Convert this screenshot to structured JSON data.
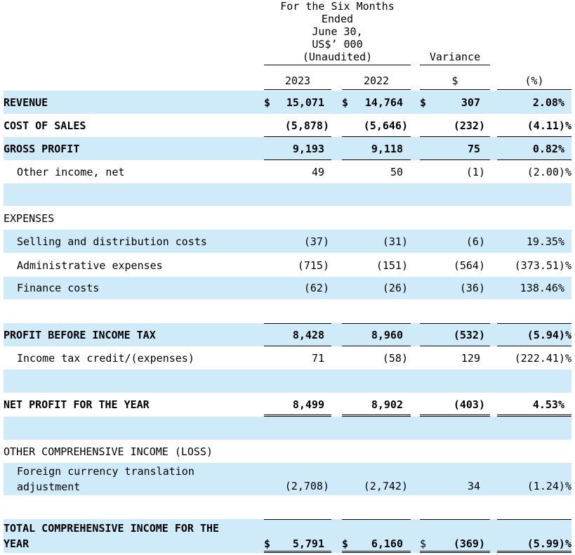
{
  "header": {
    "period": [
      "For the Six  Months",
      "Ended",
      "June  30,",
      "US$’ 000",
      "(Unaudited)"
    ],
    "variance": "Variance",
    "col_2023": "2023",
    "col_2022": "2022",
    "col_dollar": "$",
    "col_pct": "(%)"
  },
  "rows": {
    "revenue": {
      "label": "REVENUE",
      "cur23": "$",
      "v2023": "15,071",
      "cur22": "$",
      "v2022": "14,764",
      "curvar": "$",
      "var": "307",
      "pct": "2.08%"
    },
    "cost_of_sales": {
      "label": "COST OF SALES",
      "v2023": "(5,878)",
      "v2022": "(5,646)",
      "var": "(232)",
      "pct": "(4.11)%"
    },
    "gross_profit": {
      "label": "GROSS PROFIT",
      "v2023": "9,193",
      "v2022": "9,118",
      "var": "75",
      "pct": "0.82%"
    },
    "other_income": {
      "label": "Other income, net",
      "v2023": "49",
      "v2022": "50",
      "var": "(1)",
      "pct": "(2.00)%"
    },
    "expenses": {
      "label": "EXPENSES"
    },
    "selling": {
      "label": "Selling and distribution costs",
      "v2023": "(37)",
      "v2022": "(31)",
      "var": "(6)",
      "pct": "19.35%"
    },
    "admin": {
      "label": "Administrative expenses",
      "v2023": "(715)",
      "v2022": "(151)",
      "var": "(564)",
      "pct": "(373.51)%"
    },
    "finance": {
      "label": "Finance costs",
      "v2023": "(62)",
      "v2022": "(26)",
      "var": "(36)",
      "pct": "138.46%"
    },
    "profit_before_tax": {
      "label": "PROFIT BEFORE INCOME TAX",
      "v2023": "8,428",
      "v2022": "8,960",
      "var": "(532)",
      "pct": "(5.94)%"
    },
    "income_tax": {
      "label": "Income tax credit/(expenses)",
      "v2023": "71",
      "v2022": "(58)",
      "var": "129",
      "pct": "(222.41)%"
    },
    "net_profit": {
      "label": "NET PROFIT FOR THE YEAR",
      "v2023": "8,499",
      "v2022": "8,902",
      "var": "(403)",
      "pct": "4.53%"
    },
    "oci": {
      "label": "OTHER COMPREHENSIVE INCOME (LOSS)"
    },
    "fx": {
      "label": "Foreign currency translation adjustment",
      "v2023": "(2,708)",
      "v2022": "(2,742)",
      "var": "34",
      "pct": "(1.24)%"
    },
    "total": {
      "label": "TOTAL COMPREHENSIVE INCOME FOR THE YEAR",
      "cur23": "$",
      "v2023": "5,791",
      "cur22": "$",
      "v2022": "6,160",
      "curvar": "$",
      "var": "(369)",
      "pct": "(5.99)%"
    }
  },
  "colors": {
    "row_shade": "#cfeaf8"
  }
}
